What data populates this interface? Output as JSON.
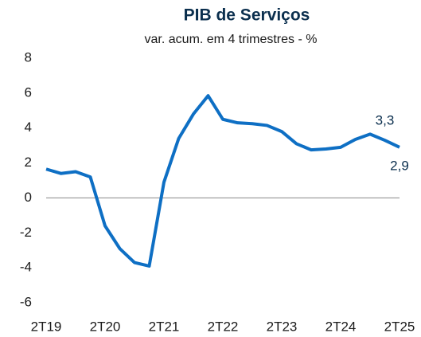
{
  "chart_data": {
    "type": "line",
    "title": "PIB de Serviços",
    "subtitle": "var. acum. em 4 trimestres - %",
    "categories": [
      "2T19",
      null,
      null,
      null,
      "2T20",
      null,
      null,
      null,
      "2T21",
      null,
      null,
      null,
      "2T22",
      null,
      null,
      null,
      "2T23",
      null,
      null,
      null,
      "2T24",
      null,
      null,
      null,
      "2T25"
    ],
    "series": [
      {
        "name": "PIB de Serviços",
        "color": "#0e6fc4",
        "values": [
          1.65,
          1.4,
          1.5,
          1.2,
          -1.6,
          -2.9,
          -3.7,
          -3.9,
          0.9,
          3.4,
          4.8,
          5.85,
          4.5,
          4.3,
          4.25,
          4.15,
          3.8,
          3.1,
          2.75,
          2.8,
          2.9,
          3.35,
          3.65,
          3.3,
          2.9
        ],
        "value_labels": [
          null,
          null,
          null,
          null,
          null,
          null,
          null,
          null,
          null,
          null,
          null,
          null,
          null,
          null,
          null,
          null,
          null,
          null,
          null,
          null,
          null,
          null,
          null,
          "3,3",
          "2,9"
        ]
      }
    ],
    "ylim": [
      -6,
      8
    ],
    "yticks": [
      -6,
      -4,
      -2,
      0,
      2,
      4,
      6,
      8
    ]
  }
}
